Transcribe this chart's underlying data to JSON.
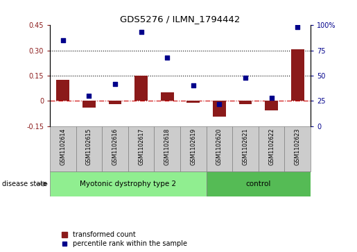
{
  "title": "GDS5276 / ILMN_1794442",
  "samples": [
    "GSM1102614",
    "GSM1102615",
    "GSM1102616",
    "GSM1102617",
    "GSM1102618",
    "GSM1102619",
    "GSM1102620",
    "GSM1102621",
    "GSM1102622",
    "GSM1102623"
  ],
  "bar_values": [
    0.125,
    -0.04,
    -0.02,
    0.15,
    0.05,
    -0.01,
    -0.095,
    -0.02,
    -0.055,
    0.305
  ],
  "dot_values": [
    85,
    30,
    42,
    93,
    68,
    40,
    22,
    48,
    28,
    98
  ],
  "dotted_lines": [
    0.15,
    0.3
  ],
  "ylim_left": [
    -0.15,
    0.45
  ],
  "ylim_right": [
    0,
    100
  ],
  "yticks_left": [
    -0.15,
    0.0,
    0.15,
    0.3,
    0.45
  ],
  "yticks_right": [
    0,
    25,
    50,
    75,
    100
  ],
  "ytick_labels_left": [
    "-0.15",
    "0",
    "0.15",
    "0.30",
    "0.45"
  ],
  "ytick_labels_right": [
    "0",
    "25",
    "50",
    "75",
    "100%"
  ],
  "bar_color": "#8B1A1A",
  "dot_color": "#00008B",
  "hline_color": "#CC0000",
  "dotted_line_color": "#000000",
  "group1_label": "Myotonic dystrophy type 2",
  "group2_label": "control",
  "group1_color": "#90EE90",
  "group2_color": "#55BB55",
  "disease_state_label": "disease state",
  "legend_bar_label": "transformed count",
  "legend_dot_label": "percentile rank within the sample",
  "plot_bg_color": "#FFFFFF",
  "sample_box_color": "#CCCCCC",
  "group1_indices": [
    0,
    1,
    2,
    3,
    4,
    5
  ],
  "group2_indices": [
    6,
    7,
    8,
    9
  ],
  "bar_width": 0.5
}
